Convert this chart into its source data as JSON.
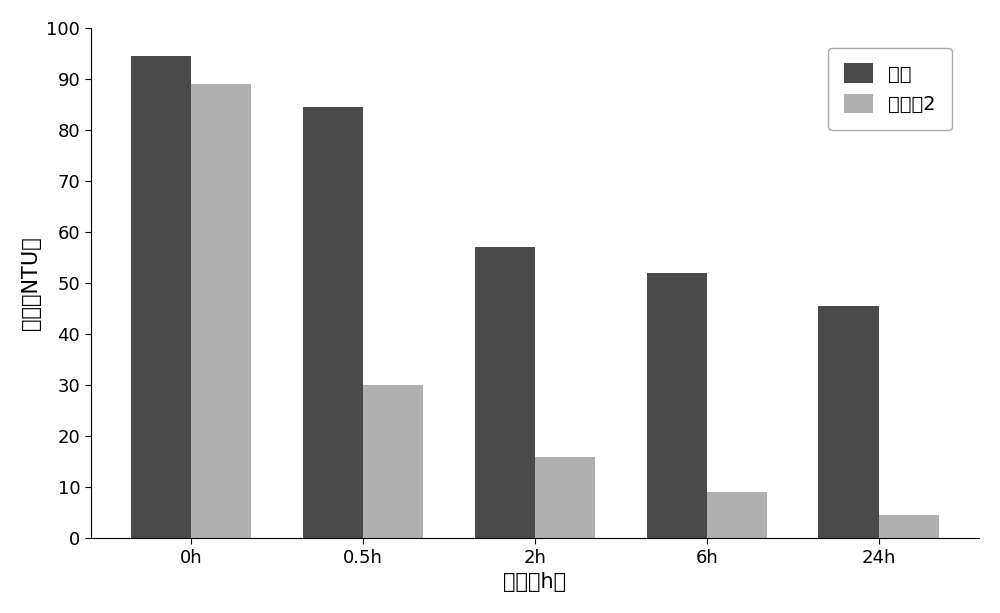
{
  "categories": [
    "0h",
    "0.5h",
    "2h",
    "6h",
    "24h"
  ],
  "control_values": [
    94.5,
    84.5,
    57,
    52,
    45.5
  ],
  "treatment_values": [
    89,
    30,
    16,
    9,
    4.5
  ],
  "control_color": "#4a4a4a",
  "treatment_color": "#b0b0b0",
  "ylabel": "浊度（NTU）",
  "xlabel": "时间（h）",
  "ylim": [
    0,
    100
  ],
  "yticks": [
    0,
    10,
    20,
    30,
    40,
    50,
    60,
    70,
    80,
    90,
    100
  ],
  "legend_labels": [
    "对照",
    "处理组2"
  ],
  "bar_width": 0.35,
  "background_color": "#ffffff",
  "ylabel_fontsize": 15,
  "xlabel_fontsize": 15,
  "tick_fontsize": 13,
  "legend_fontsize": 14
}
